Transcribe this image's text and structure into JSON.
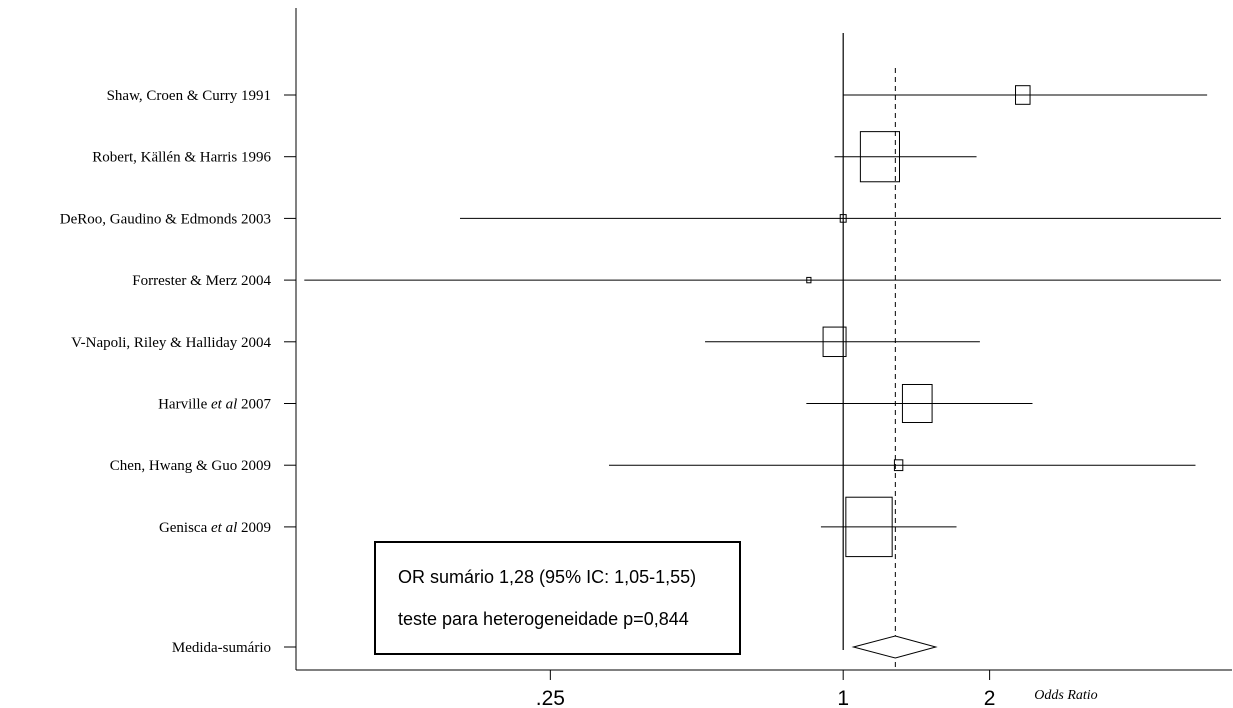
{
  "chart_data": {
    "type": "forest",
    "xlabel": "Odds Ratio",
    "x_scale": "log",
    "xlim": [
      0.075,
      6.3
    ],
    "x_ticks": [
      {
        "value": 0.25,
        "label": ".25"
      },
      {
        "value": 1,
        "label": "1"
      },
      {
        "value": 2,
        "label": "2"
      }
    ],
    "null_line": 1,
    "summary_line": 1.28,
    "studies": [
      {
        "label": "Shaw, Croen & Curry 1991",
        "label_parts": [
          {
            "t": "Shaw, Croen & Curry 1991",
            "i": false
          }
        ],
        "or": 2.34,
        "ci": [
          1.0,
          5.6
        ],
        "weight": 1.2
      },
      {
        "label": "Robert, Källén & Harris 1996",
        "label_parts": [
          {
            "t": "Robert, Källén & Harris 1996",
            "i": false
          }
        ],
        "or": 1.19,
        "ci": [
          0.96,
          1.88
        ],
        "weight": 8.7
      },
      {
        "label": "DeRoo, Gaudino & Edmonds 2003",
        "label_parts": [
          {
            "t": "DeRoo, Gaudino & Edmonds 2003",
            "i": false
          }
        ],
        "or": 1.0,
        "ci": [
          0.163,
          6.4
        ],
        "weight": 0.2
      },
      {
        "label": "Forrester & Merz 2004",
        "label_parts": [
          {
            "t": "Forrester & Merz 2004",
            "i": false
          }
        ],
        "or": 0.85,
        "ci": [
          0.078,
          7.2
        ],
        "weight": 0.1
      },
      {
        "label": "V-Napoli, Riley & Halliday 2004",
        "label_parts": [
          {
            "t": "V-Napoli, Riley & Halliday 2004",
            "i": false
          }
        ],
        "or": 0.96,
        "ci": [
          0.52,
          1.91
        ],
        "weight": 3.0
      },
      {
        "label": "Harville et al 2007",
        "label_parts": [
          {
            "t": "Harville ",
            "i": false
          },
          {
            "t": "et al",
            "i": true
          },
          {
            "t": " 2007",
            "i": false
          }
        ],
        "or": 1.42,
        "ci": [
          0.84,
          2.45
        ],
        "weight": 5.0
      },
      {
        "label": "Chen, Hwang & Guo 2009",
        "label_parts": [
          {
            "t": "Chen, Hwang & Guo 2009",
            "i": false
          }
        ],
        "or": 1.3,
        "ci": [
          0.33,
          5.3
        ],
        "weight": 0.4
      },
      {
        "label": "Genisca et al 2009",
        "label_parts": [
          {
            "t": "Genisca ",
            "i": false
          },
          {
            "t": "et al",
            "i": true
          },
          {
            "t": " 2009",
            "i": false
          }
        ],
        "or": 1.13,
        "ci": [
          0.9,
          1.71
        ],
        "weight": 12.2
      }
    ],
    "summary": {
      "label": "Medida-sumário",
      "or": 1.28,
      "ci": [
        1.05,
        1.55
      ]
    }
  },
  "annotation": {
    "line1": "OR sumário 1,28 (95% IC: 1,05-1,55)",
    "line2": "teste para heterogeneidade p=0,844"
  }
}
